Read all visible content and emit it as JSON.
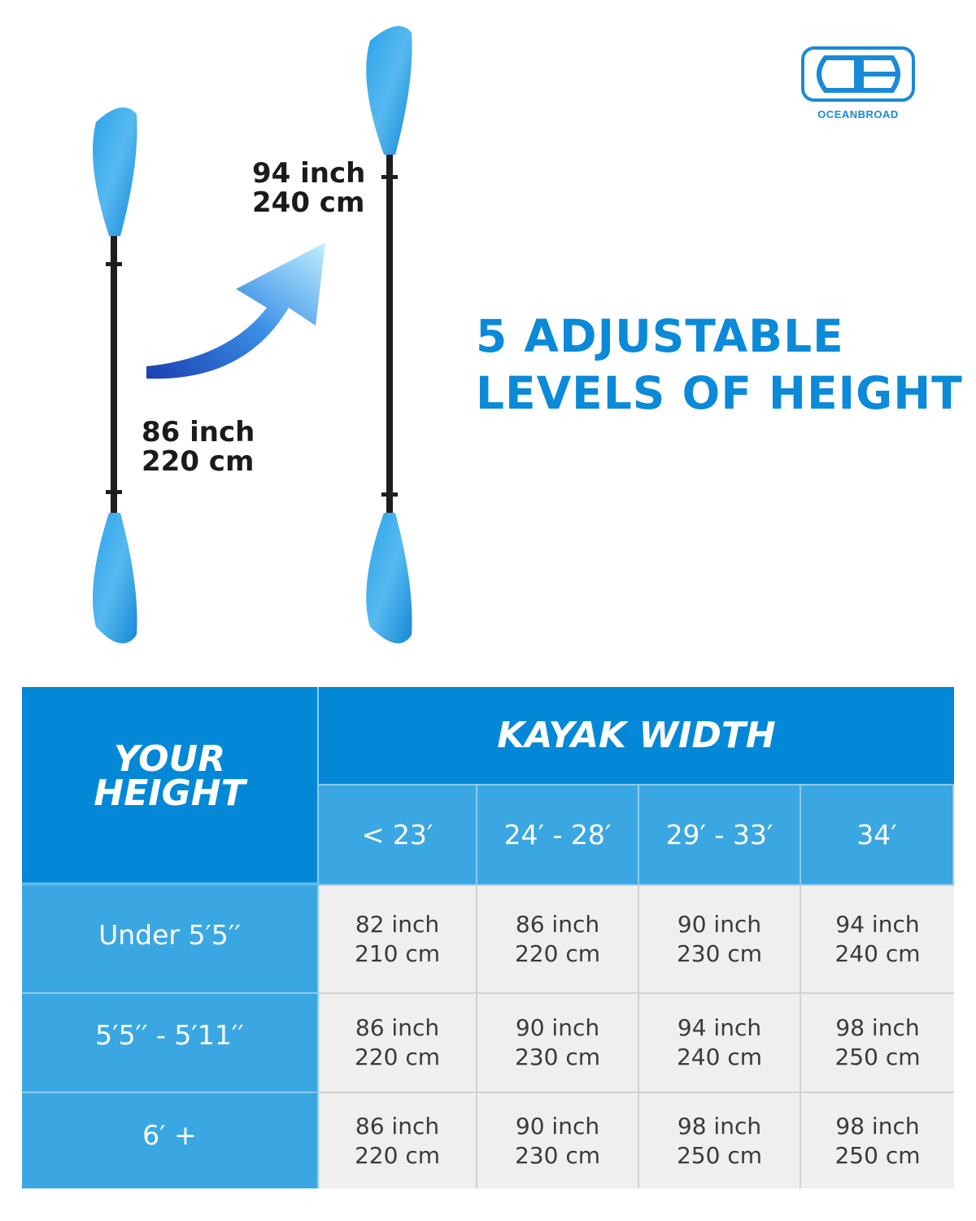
{
  "brand": {
    "logo_text": "OCEANBROAD",
    "color": "#1a8ad6"
  },
  "callouts": {
    "short": {
      "inch": "86 inch",
      "cm": "220 cm"
    },
    "long": {
      "inch": "94 inch",
      "cm": "240 cm"
    }
  },
  "headline": {
    "line1": "5 ADJUSTABLE",
    "line2": "LEVELS OF HEIGHT"
  },
  "table": {
    "height_header": {
      "line1": "YOUR",
      "line2": "HEIGHT"
    },
    "width_header": "KAYAK WIDTH",
    "columns": [
      "< 23′",
      "24′ - 28′",
      "29′ - 33′",
      "34′"
    ],
    "rows": [
      {
        "height": "Under 5′5′′",
        "cells": [
          [
            "82 inch",
            "210 cm"
          ],
          [
            "86 inch",
            "220 cm"
          ],
          [
            "90 inch",
            "230 cm"
          ],
          [
            "94 inch",
            "240 cm"
          ]
        ]
      },
      {
        "height": "5′5′′ - 5′11′′",
        "cells": [
          [
            "86 inch",
            "220 cm"
          ],
          [
            "90 inch",
            "230 cm"
          ],
          [
            "94 inch",
            "240 cm"
          ],
          [
            "98 inch",
            "250 cm"
          ]
        ]
      },
      {
        "height": "6′ +",
        "cells": [
          [
            "86 inch",
            "220 cm"
          ],
          [
            "90 inch",
            "230 cm"
          ],
          [
            "98 inch",
            "250 cm"
          ],
          [
            "98 inch",
            "250 cm"
          ]
        ]
      }
    ],
    "colors": {
      "header_dark": "#0288d6",
      "header_light": "#3aa7e2",
      "cell": "#efefef"
    }
  }
}
